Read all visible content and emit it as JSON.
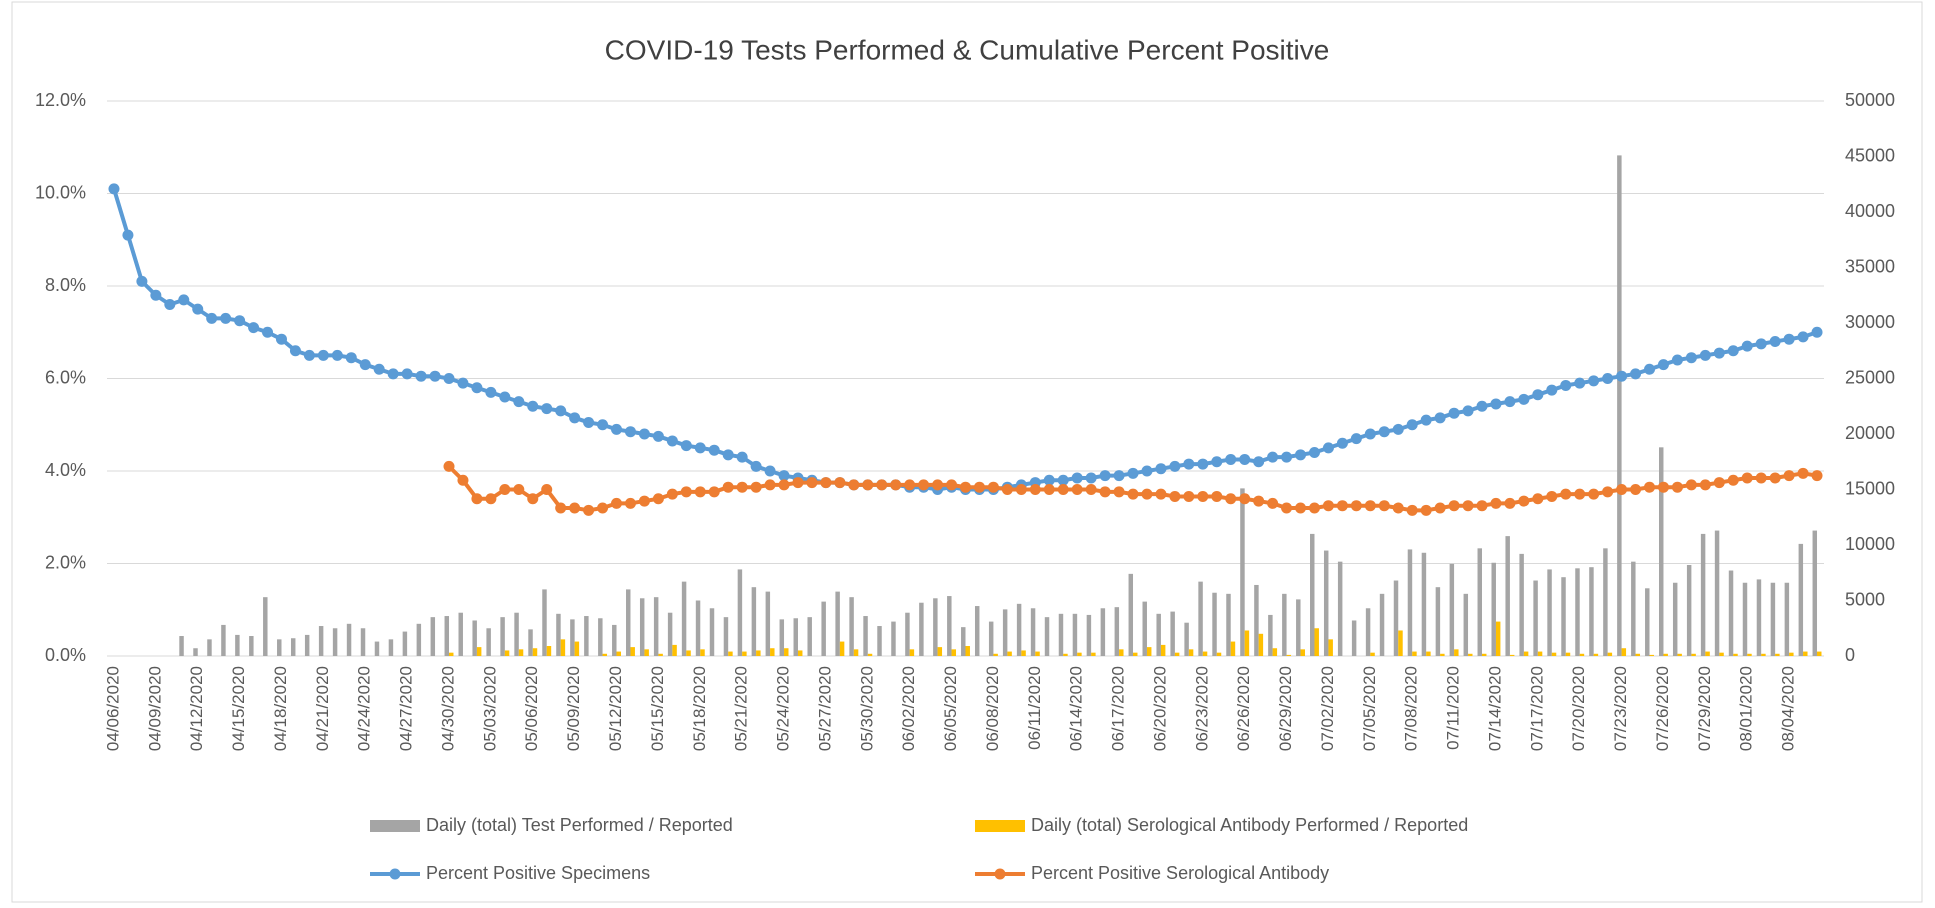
{
  "chart_data": {
    "type": "combo",
    "title": "COVID-19 Tests Performed & Cumulative Percent Positive",
    "categories": [
      "04/06/2020",
      null,
      null,
      "04/09/2020",
      null,
      null,
      "04/12/2020",
      null,
      null,
      "04/15/2020",
      null,
      null,
      "04/18/2020",
      null,
      null,
      "04/21/2020",
      null,
      null,
      "04/24/2020",
      null,
      null,
      "04/27/2020",
      null,
      null,
      "04/30/2020",
      null,
      null,
      "05/03/2020",
      null,
      null,
      "05/06/2020",
      null,
      null,
      "05/09/2020",
      null,
      null,
      "05/12/2020",
      null,
      null,
      "05/15/2020",
      null,
      null,
      "05/18/2020",
      null,
      null,
      "05/21/2020",
      null,
      null,
      "05/24/2020",
      null,
      null,
      "05/27/2020",
      null,
      null,
      "05/30/2020",
      null,
      null,
      "06/02/2020",
      null,
      null,
      "06/05/2020",
      null,
      null,
      "06/08/2020",
      null,
      null,
      "06/11/2020",
      null,
      null,
      "06/14/2020",
      null,
      null,
      "06/17/2020",
      null,
      null,
      "06/20/2020",
      null,
      null,
      "06/23/2020",
      null,
      null,
      "06/26/2020",
      null,
      null,
      "06/29/2020",
      null,
      null,
      "07/02/2020",
      null,
      null,
      "07/05/2020",
      null,
      null,
      "07/08/2020",
      null,
      null,
      "07/11/2020",
      null,
      null,
      "07/14/2020",
      null,
      null,
      "07/17/2020",
      null,
      null,
      "07/20/2020",
      null,
      null,
      "07/23/2020",
      null,
      null,
      "07/26/2020",
      null,
      null,
      "07/29/2020",
      null,
      null,
      "08/01/2020",
      null,
      null,
      "08/04/2020",
      null,
      null
    ],
    "series": [
      {
        "name": "Daily (total) Test Performed / Reported",
        "type": "bar",
        "axis": "y2",
        "color": "#a5a5a5",
        "values": [
          0,
          0,
          0,
          0,
          0,
          1800,
          700,
          1500,
          2800,
          1900,
          1800,
          5300,
          1500,
          1600,
          1900,
          2700,
          2500,
          2900,
          2500,
          1300,
          1500,
          2200,
          2900,
          3500,
          3600,
          3900,
          3200,
          2500,
          3500,
          3900,
          2400,
          6000,
          3800,
          3300,
          3600,
          3400,
          2800,
          6000,
          5200,
          5300,
          3900,
          6700,
          5000,
          4300,
          3500,
          7800,
          6200,
          5800,
          3300,
          3400,
          3500,
          4900,
          5800,
          5300,
          3600,
          2700,
          3100,
          3900,
          4800,
          5200,
          5400,
          2600,
          4500,
          3100,
          4200,
          4700,
          4300,
          3500,
          3800,
          3800,
          3700,
          4300,
          4400,
          7400,
          4900,
          3800,
          4000,
          3000,
          6700,
          5700,
          5600,
          15100,
          6400,
          3700,
          5600,
          5100,
          11000,
          9500,
          8500,
          3200,
          4300,
          5600,
          6800,
          9600,
          9300,
          6200,
          8300,
          5600,
          9700,
          8400,
          10800,
          9200,
          6800,
          7800,
          7100,
          7900,
          8000,
          9700,
          45100,
          8500,
          6100,
          18800,
          6600,
          8200,
          11000,
          11300,
          7700,
          6600,
          6900,
          6600,
          6600,
          10100,
          11300
        ]
      },
      {
        "name": "Daily (total) Serological Antibody Performed / Reported",
        "type": "bar",
        "axis": "y2",
        "color": "#ffc000",
        "values": [
          0,
          0,
          0,
          0,
          0,
          0,
          0,
          0,
          0,
          0,
          0,
          0,
          0,
          0,
          0,
          0,
          0,
          0,
          0,
          0,
          0,
          0,
          0,
          0,
          300,
          0,
          800,
          0,
          500,
          600,
          700,
          900,
          1500,
          1300,
          0,
          200,
          400,
          800,
          600,
          200,
          1000,
          500,
          600,
          0,
          400,
          400,
          500,
          700,
          700,
          500,
          0,
          0,
          1300,
          600,
          200,
          0,
          0,
          600,
          0,
          800,
          600,
          900,
          0,
          200,
          400,
          500,
          400,
          0,
          200,
          300,
          300,
          0,
          600,
          300,
          800,
          1000,
          300,
          600,
          400,
          300,
          1300,
          2300,
          2000,
          700,
          100,
          600,
          2500,
          1500,
          0,
          0,
          300,
          0,
          2300,
          400,
          400,
          200,
          600,
          200,
          200,
          3100,
          100,
          400,
          400,
          300,
          300,
          200,
          200,
          300,
          700,
          200,
          100,
          200,
          200,
          200,
          400,
          300,
          200,
          200,
          200,
          200,
          300,
          400,
          400
        ]
      },
      {
        "name": "Percent Positive Specimens",
        "type": "line",
        "color": "#5b9bd5",
        "values": [
          10.1,
          9.1,
          8.1,
          7.8,
          7.6,
          7.7,
          7.5,
          7.3,
          7.3,
          7.25,
          7.1,
          7.0,
          6.85,
          6.6,
          6.5,
          6.5,
          6.5,
          6.45,
          6.3,
          6.2,
          6.1,
          6.1,
          6.05,
          6.05,
          6.0,
          5.9,
          5.8,
          5.7,
          5.6,
          5.5,
          5.4,
          5.35,
          5.3,
          5.15,
          5.05,
          5.0,
          4.9,
          4.85,
          4.8,
          4.75,
          4.65,
          4.55,
          4.5,
          4.45,
          4.35,
          4.3,
          4.1,
          4.0,
          3.9,
          3.85,
          3.8,
          3.75,
          3.75,
          3.7,
          3.7,
          3.7,
          3.7,
          3.65,
          3.65,
          3.6,
          3.65,
          3.6,
          3.6,
          3.6,
          3.65,
          3.7,
          3.75,
          3.8,
          3.8,
          3.85,
          3.85,
          3.9,
          3.9,
          3.95,
          4.0,
          4.05,
          4.1,
          4.15,
          4.15,
          4.2,
          4.25,
          4.25,
          4.2,
          4.3,
          4.3,
          4.35,
          4.4,
          4.5,
          4.6,
          4.7,
          4.8,
          4.85,
          4.9,
          5.0,
          5.1,
          5.15,
          5.25,
          5.3,
          5.4,
          5.45,
          5.5,
          5.55,
          5.65,
          5.75,
          5.85,
          5.9,
          5.95,
          6.0,
          6.05,
          6.1,
          6.2,
          6.3,
          6.4,
          6.45,
          6.5,
          6.55,
          6.6,
          6.7,
          6.75,
          6.8,
          6.85,
          6.9,
          7.0
        ]
      },
      {
        "name": "Percent Positive Serological Antibody",
        "type": "line",
        "color": "#ed7d31",
        "values": [
          null,
          null,
          null,
          null,
          null,
          null,
          null,
          null,
          null,
          null,
          null,
          null,
          null,
          null,
          null,
          null,
          null,
          null,
          null,
          null,
          null,
          null,
          null,
          null,
          4.1,
          3.8,
          3.4,
          3.4,
          3.6,
          3.6,
          3.4,
          3.6,
          3.2,
          3.2,
          3.15,
          3.2,
          3.3,
          3.3,
          3.35,
          3.4,
          3.5,
          3.55,
          3.55,
          3.55,
          3.65,
          3.65,
          3.65,
          3.7,
          3.7,
          3.75,
          3.75,
          3.75,
          3.75,
          3.7,
          3.7,
          3.7,
          3.7,
          3.7,
          3.7,
          3.7,
          3.7,
          3.65,
          3.65,
          3.65,
          3.6,
          3.6,
          3.6,
          3.6,
          3.6,
          3.6,
          3.6,
          3.55,
          3.55,
          3.5,
          3.5,
          3.5,
          3.45,
          3.45,
          3.45,
          3.45,
          3.4,
          3.4,
          3.35,
          3.3,
          3.2,
          3.2,
          3.2,
          3.25,
          3.25,
          3.25,
          3.25,
          3.25,
          3.2,
          3.15,
          3.15,
          3.2,
          3.25,
          3.25,
          3.25,
          3.3,
          3.3,
          3.35,
          3.4,
          3.45,
          3.5,
          3.5,
          3.5,
          3.55,
          3.6,
          3.6,
          3.65,
          3.65,
          3.65,
          3.7,
          3.7,
          3.75,
          3.8,
          3.85,
          3.85,
          3.85,
          3.9,
          3.95,
          3.9
        ]
      }
    ],
    "ylim": [
      0,
      12
    ],
    "yticks": [
      {
        "value": 0,
        "label": "0.0%"
      },
      {
        "value": 2,
        "label": "2.0%"
      },
      {
        "value": 4,
        "label": "4.0%"
      },
      {
        "value": 6,
        "label": "6.0%"
      },
      {
        "value": 8,
        "label": "8.0%"
      },
      {
        "value": 10,
        "label": "10.0%"
      },
      {
        "value": 12,
        "label": "12.0%"
      }
    ],
    "y2lim": [
      0,
      50000
    ],
    "y2ticks": [
      0,
      5000,
      10000,
      15000,
      20000,
      25000,
      30000,
      35000,
      40000,
      45000,
      50000
    ],
    "grid": true,
    "legend": "bottom"
  }
}
